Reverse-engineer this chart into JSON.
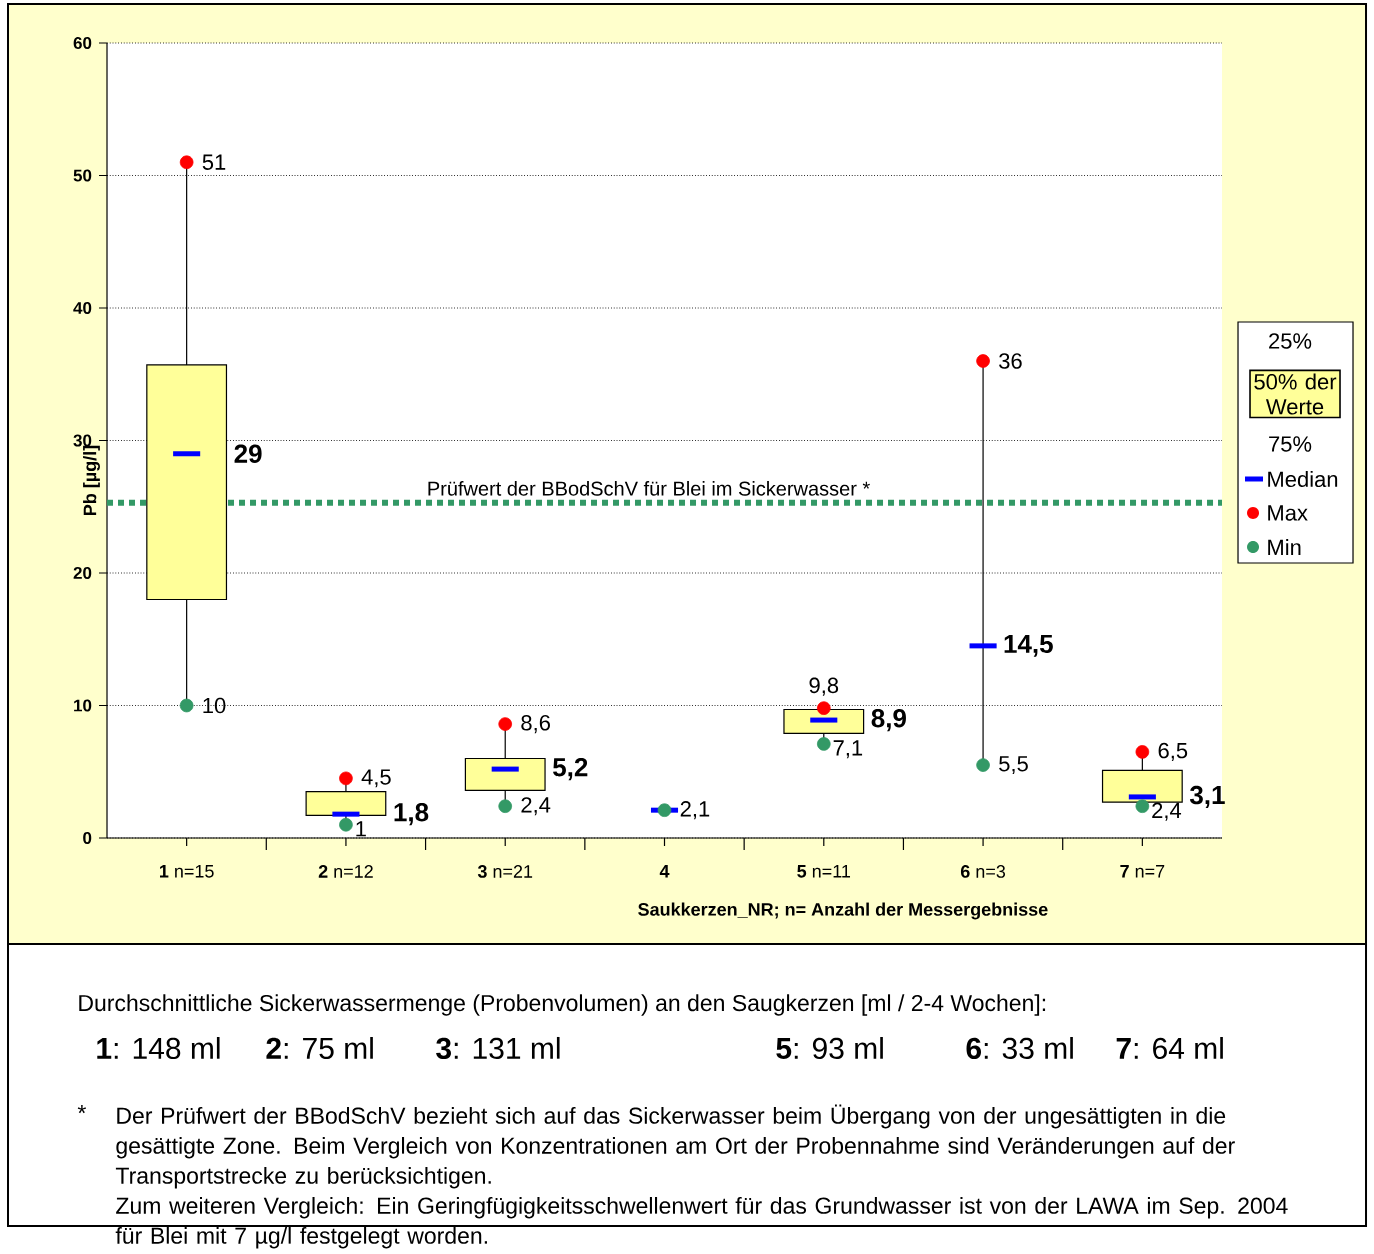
{
  "chart_data": {
    "type": "box",
    "ylabel": "Pb [µg/l]",
    "xlabel": "Saukkerzen_NR;  n= Anzahl der Messergebnisse",
    "categories": [
      "**1**  n=15",
      "**2**  n=12",
      "**3**  n=21",
      "**4**",
      "**5**  n=11",
      "**6**  n=3",
      "**7**  n=7"
    ],
    "ylim": [
      0,
      60
    ],
    "yticks": [
      0,
      10,
      20,
      30,
      40,
      50,
      60
    ],
    "grid": "y",
    "legend": "right",
    "series": [
      {
        "name": "50% der Werte",
        "color": "#ffff99",
        "boxes": [
          {
            "low": 10,
            "q1": 18,
            "median": 29,
            "q3": 35.7,
            "high": 51
          },
          {
            "low": 1,
            "q1": 1.7,
            "median": 1.8,
            "q3": 3.5,
            "high": 4.5
          },
          {
            "low": 2.4,
            "q1": 3.6,
            "median": 5.2,
            "q3": 6,
            "high": 8.6
          },
          {
            "low": 2.1,
            "q1": 2.1,
            "median": 2.1,
            "q3": 2.1,
            "high": 2.1
          },
          {
            "low": 7.1,
            "q1": 7.9,
            "median": 8.9,
            "q3": 9.7,
            "high": 9.8
          },
          {
            "low": 5.5,
            "q1": 14.5,
            "median": 14.5,
            "q3": 14.5,
            "high": 36
          },
          {
            "low": 2.4,
            "q1": 2.7,
            "median": 3.1,
            "q3": 5.1,
            "high": 6.5
          }
        ]
      },
      {
        "type": "scatter",
        "name": "Max",
        "color": "#ff0000",
        "marker": "circle",
        "x": [
          "**1**  n=15",
          "**2**  n=12",
          "**3**  n=21",
          "**4**",
          "**5**  n=11",
          "**6**  n=3",
          "**7**  n=7"
        ],
        "values": [
          51,
          4.5,
          8.6,
          null,
          9.8,
          36,
          6.5
        ]
      },
      {
        "type": "scatter",
        "name": "Min",
        "color": "#339966",
        "marker": "circle",
        "x": [
          "**1**  n=15",
          "**2**  n=12",
          "**3**  n=21",
          "**4**",
          "**5**  n=11",
          "**6**  n=3",
          "**7**  n=7"
        ],
        "values": [
          10,
          1,
          2.4,
          2.1,
          7.1,
          5.5,
          2.4
        ]
      }
    ],
    "ref_lines": [
      {
        "axis": "y",
        "value": 25.3,
        "label": "Prüfwert der BBodSchV für Blei im Sickerwasser *",
        "color": "#339966",
        "line_style": "dotted"
      }
    ],
    "annotations": [
      "25%",
      "75%",
      "Median",
      "29",
      "1,8",
      "5,2",
      "8,9",
      "14,5",
      "3,1",
      {
        "text": "51",
        "x": "**1**  n=15",
        "y": 51
      },
      {
        "text": "10",
        "x": "**1**  n=15",
        "y": 10
      },
      {
        "text": "4,5",
        "x": "**2**  n=12",
        "y": 4.5
      },
      {
        "text": "1",
        "x": "**2**  n=12",
        "y": 1
      },
      {
        "text": "8,6",
        "x": "**3**  n=21",
        "y": 8.6
      },
      {
        "text": "2,4",
        "x": "**3**  n=21",
        "y": 2.4
      },
      {
        "text": "2,1",
        "x": "**4**",
        "y": 2.1
      },
      {
        "text": "9,8",
        "x": "**5**  n=11",
        "y": 9.8
      },
      {
        "text": "7,1",
        "x": "**5**  n=11",
        "y": 7.1
      },
      {
        "text": "36",
        "x": "**6**  n=3",
        "y": 36
      },
      {
        "text": "5,5",
        "x": "**6**  n=3",
        "y": 5.5
      },
      {
        "text": "6,5",
        "x": "**7**  n=7",
        "y": 6.5
      },
      {
        "text": "2,4",
        "x": "**7**  n=7",
        "y": 2.4
      },
      "Durchschnittliche Sickerwassermenge (Probenvolumen) an den Saugkerzen [ml / 2-4 Wochen]:",
      "**1**: 148 ml",
      "**2**: 75 ml",
      "**3**: 131 ml",
      "**5**: 93 ml",
      "**6**: 33 ml",
      "**7**: 64 ml",
      "*",
      "Der Prüfwert der BBodSchV bezieht sich auf das Sickerwasser beim Übergang von der ungesättigten in die gesättigte Zone. Beim Vergleich von Konzentrationen am Ort der Probennahme sind Veränderungen auf der Transportstrecke zu berücksichtigen.",
      "Zum weiteren Vergleich: Ein Geringfügigkeitsschwellenwert für das Grundwasser ist von der LAWA im Sep. 2004 für Blei mit 7 µg/l festgelegt worden."
    ]
  }
}
